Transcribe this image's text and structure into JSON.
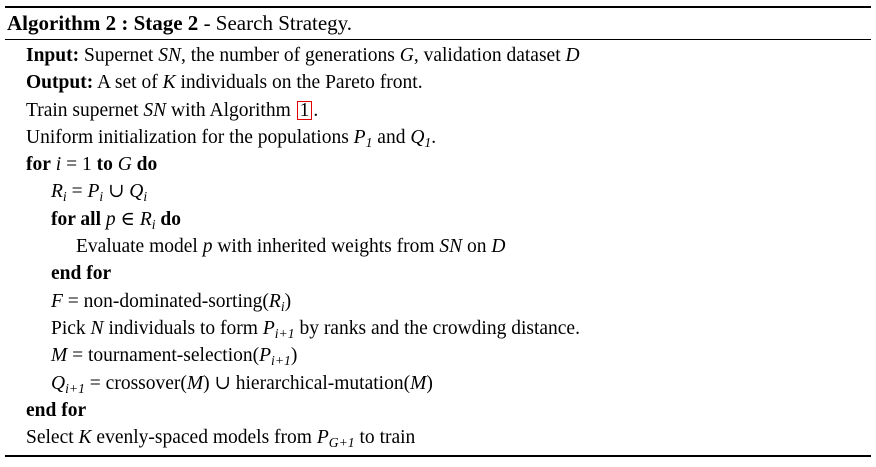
{
  "caption": {
    "label": "Algorithm 2 : Stage 2",
    "title": " - Search Strategy."
  },
  "lines": [
    {
      "kw": "Input:",
      "text": " Supernet SN, the number of generations G, validation dataset D"
    },
    {
      "kw": "Output:",
      "text": "  A set of K individuals on the Pareto front."
    },
    {
      "text_a": "Train supernet SN with Algorithm ",
      "ref": "1",
      "text_b": "."
    },
    {
      "text": "Uniform initialization for the populations P1 and Q1."
    },
    {
      "kw_a": "for",
      "text": " i = 1 ",
      "kw_b": "to",
      "text_b": " G ",
      "kw_c": "do"
    },
    {
      "text": "Ri = Pi ∪ Qi"
    },
    {
      "kw_a": "for all",
      "text": "  p ∈ Ri ",
      "kw_b": "do"
    },
    {
      "text": "Evaluate model p with inherited weights from SN on D"
    },
    {
      "kw": "end for"
    },
    {
      "text": "F = non-dominated-sorting(Ri)"
    },
    {
      "text": "Pick N individuals to form Pi+1 by ranks and the crowding distance."
    },
    {
      "text": "M = tournament-selection(Pi+1)"
    },
    {
      "text": "Qi+1 = crossover(M) ∪ hierarchical-mutation(M)"
    },
    {
      "kw": "end for"
    },
    {
      "text": "Select K evenly-spaced models from PG+1 to train"
    }
  ]
}
